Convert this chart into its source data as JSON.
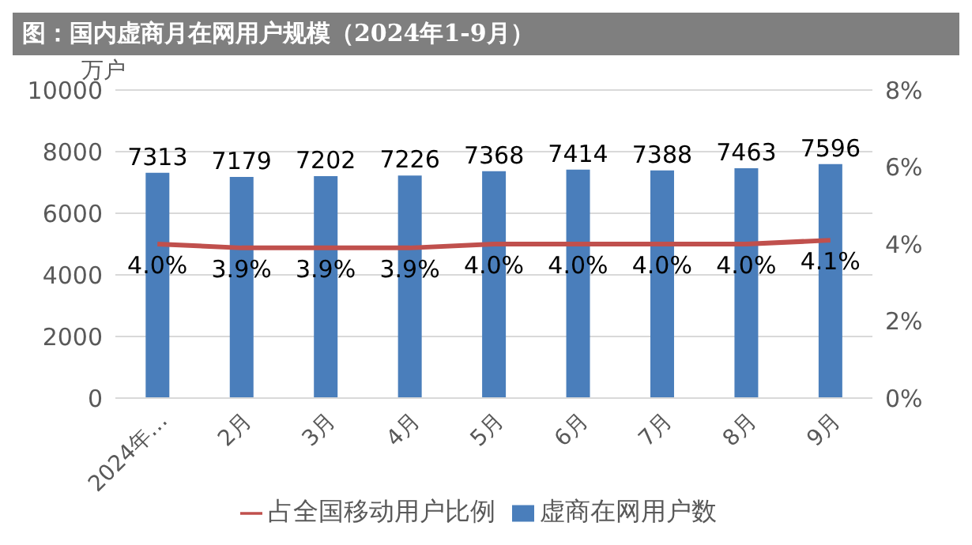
{
  "chart_data": {
    "type": "bar",
    "title": "图：国内虚商月在网用户规模（2024年1-9月）",
    "ylabel": "万户",
    "categories": [
      "2024年…",
      "2月",
      "3月",
      "4月",
      "5月",
      "6月",
      "7月",
      "8月",
      "9月"
    ],
    "series": [
      {
        "name": "虚商在网用户数",
        "color": "#4a7ebb",
        "values": [
          7313,
          7179,
          7202,
          7226,
          7368,
          7414,
          7388,
          7463,
          7596
        ],
        "data_labels": true
      },
      {
        "name": "占全国移动用户比例",
        "type": "line",
        "axis": "y2",
        "color": "#c0504d",
        "values": [
          4.0,
          3.9,
          3.9,
          3.9,
          4.0,
          4.0,
          4.0,
          4.0,
          4.1
        ],
        "value_labels": [
          "4.0%",
          "3.9%",
          "3.9%",
          "3.9%",
          "4.0%",
          "4.0%",
          "4.0%",
          "4.0%",
          "4.1%"
        ]
      }
    ],
    "ylim": [
      0,
      10000
    ],
    "yticks": [
      0,
      2000,
      4000,
      6000,
      8000,
      10000
    ],
    "y2lim": [
      0,
      8
    ],
    "y2ticks": [
      {
        "value": 0,
        "label": "0%"
      },
      {
        "value": 2,
        "label": "2%"
      },
      {
        "value": 4,
        "label": "4%"
      },
      {
        "value": 6,
        "label": "6%"
      },
      {
        "value": 8,
        "label": "8%"
      }
    ],
    "grid": "y",
    "legend": "bottom",
    "marker": "none"
  }
}
